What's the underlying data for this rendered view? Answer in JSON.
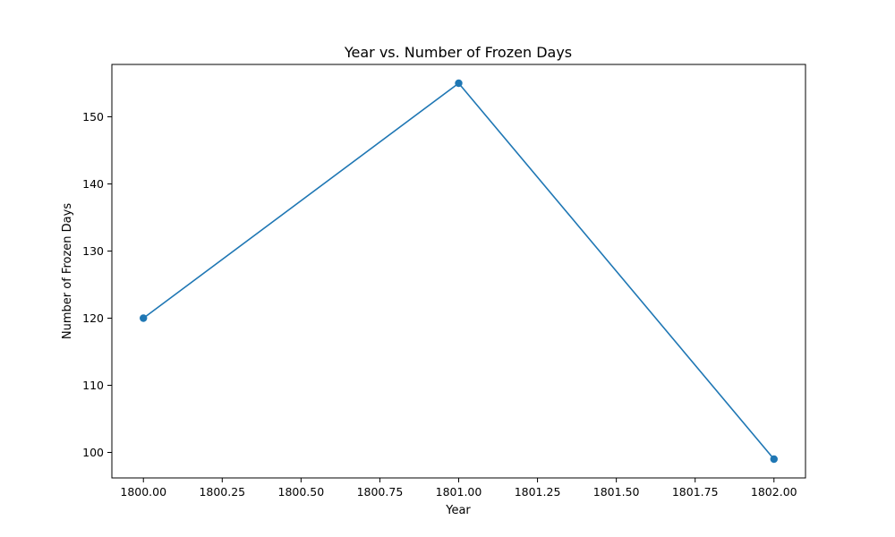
{
  "chart_data": {
    "type": "line",
    "title": "Year vs. Number of Frozen Days",
    "xlabel": "Year",
    "ylabel": "Number of Frozen Days",
    "x": [
      1800,
      1801,
      1802
    ],
    "series": [
      {
        "values": [
          120,
          155,
          99
        ],
        "color": "#1f77b4",
        "marker": "circle"
      }
    ],
    "xlim": [
      1799.9,
      1802.1
    ],
    "ylim": [
      96.2,
      157.8
    ],
    "xticks": [
      1800.0,
      1800.25,
      1800.5,
      1800.75,
      1801.0,
      1801.25,
      1801.5,
      1801.75,
      1802.0
    ],
    "xtick_labels": [
      "1800.00",
      "1800.25",
      "1800.50",
      "1800.75",
      "1801.00",
      "1801.25",
      "1801.50",
      "1801.75",
      "1802.00"
    ],
    "yticks": [
      100,
      110,
      120,
      130,
      140,
      150
    ],
    "ytick_labels": [
      "100",
      "110",
      "120",
      "130",
      "140",
      "150"
    ],
    "grid": false,
    "legend": "none"
  }
}
